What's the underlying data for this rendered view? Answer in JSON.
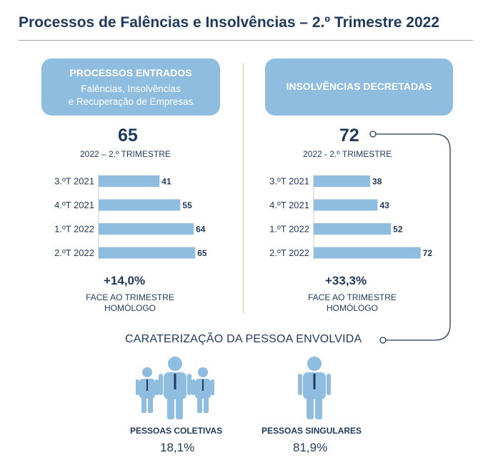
{
  "title": "Processos de Falências e Insolvências – 2.º Trimestre 2022",
  "left": {
    "box_title": "PROCESSOS ENTRADOS",
    "box_sub_line1": "Falências, Insolvências",
    "box_sub_line2": "e Recuperação de Empresas",
    "headline_value": "65",
    "headline_label": "2022 – 2.º TRIMESTRE",
    "change": "+14,0%",
    "change_label_line1": "FACE AO TRIMESTRE",
    "change_label_line2": "HOMÓLOGO"
  },
  "right": {
    "box_title": "INSOLVÊNCIAS DECRETADAS",
    "headline_value": "72",
    "headline_label": "2022 - 2.º TRIMESTRE",
    "change": "+33,3%",
    "change_label_line1": "FACE AO TRIMESTRE",
    "change_label_line2": "HOMÓLOGO"
  },
  "chart_data": [
    {
      "type": "bar",
      "orientation": "horizontal",
      "categories": [
        "3.ºT 2021",
        "4.ºT 2021",
        "1.ºT 2022",
        "2.ºT 2022"
      ],
      "values": [
        41,
        55,
        64,
        65
      ],
      "title": "PROCESSOS ENTRADOS",
      "color": "#8fbde0"
    },
    {
      "type": "bar",
      "orientation": "horizontal",
      "categories": [
        "3.ºT 2021",
        "4.ºT 2021",
        "1.ºT 2022",
        "2.ºT 2022"
      ],
      "values": [
        38,
        43,
        52,
        72
      ],
      "title": "INSOLVÊNCIAS DECRETADAS",
      "color": "#8fbde0"
    }
  ],
  "caracterizacao": {
    "label": "CARATERIZAÇÃO DA PESSOA ENVOLVIDA",
    "coletivas_label": "PESSOAS COLETIVAS",
    "coletivas_value": "18,1%",
    "singulares_label": "PESSOAS SINGULARES",
    "singulares_value": "81,9%",
    "coletivas_icon": "group-people-icon",
    "singulares_icon": "person-icon"
  },
  "colors": {
    "primary": "#1f3a5c",
    "accent": "#8fbde0",
    "divider": "#e6cf8f"
  }
}
